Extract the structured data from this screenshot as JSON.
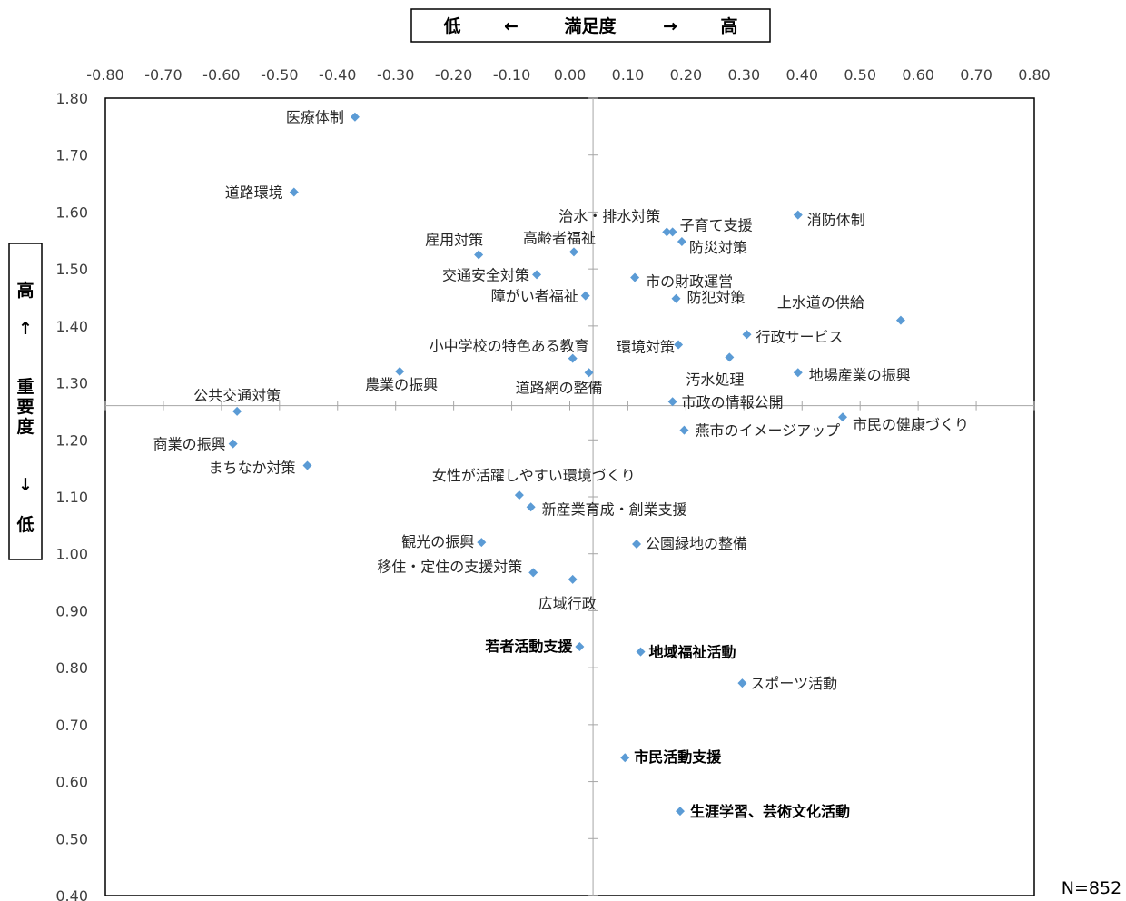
{
  "chart_data": {
    "type": "scatter",
    "x_axis_title": {
      "low": "低",
      "arrow": "←",
      "name": "満足度",
      "arrow2": "→",
      "high": "高"
    },
    "y_axis_title": {
      "high": "高",
      "arrow": "↑",
      "name": "重要度",
      "arrow2": "↓",
      "low": "低"
    },
    "xlim": [
      -0.8,
      0.8
    ],
    "ylim": [
      0.4,
      1.8
    ],
    "x_ticks": [
      "-0.80",
      "-0.70",
      "-0.60",
      "-0.50",
      "-0.40",
      "-0.30",
      "-0.20",
      "-0.10",
      "0.00",
      "0.10",
      "0.20",
      "0.30",
      "0.40",
      "0.50",
      "0.60",
      "0.70",
      "0.80"
    ],
    "y_ticks": [
      "1.80",
      "1.70",
      "1.60",
      "1.50",
      "1.40",
      "1.30",
      "1.20",
      "1.10",
      "1.00",
      "0.90",
      "0.80",
      "0.70",
      "0.60",
      "0.50",
      "0.40"
    ],
    "axis_crossing": {
      "x": 0.04,
      "y": 1.26
    },
    "marker_color": "#5B9BD5",
    "n_label": "N=852",
    "points": [
      {
        "label": "医療体制",
        "x": -0.37,
        "y": 1.767,
        "bold": false
      },
      {
        "label": "道路環境",
        "x": -0.475,
        "y": 1.635,
        "bold": false
      },
      {
        "label": "治水・排水対策",
        "x": 0.167,
        "y": 1.565,
        "bold": false
      },
      {
        "label": "子育て支援",
        "x": 0.177,
        "y": 1.565,
        "bold": false
      },
      {
        "label": "消防体制",
        "x": 0.393,
        "y": 1.595,
        "bold": false
      },
      {
        "label": "雇用対策",
        "x": -0.157,
        "y": 1.525,
        "bold": false
      },
      {
        "label": "高齢者福祉",
        "x": 0.007,
        "y": 1.53,
        "bold": false
      },
      {
        "label": "防災対策",
        "x": 0.193,
        "y": 1.548,
        "bold": false
      },
      {
        "label": "交通安全対策",
        "x": -0.057,
        "y": 1.49,
        "bold": false
      },
      {
        "label": "市の財政運営",
        "x": 0.112,
        "y": 1.485,
        "bold": false
      },
      {
        "label": "障がい者福祉",
        "x": 0.027,
        "y": 1.453,
        "bold": false
      },
      {
        "label": "防犯対策",
        "x": 0.183,
        "y": 1.448,
        "bold": false
      },
      {
        "label": "上水道の供給",
        "x": 0.57,
        "y": 1.41,
        "bold": false
      },
      {
        "label": "行政サービス",
        "x": 0.305,
        "y": 1.385,
        "bold": false
      },
      {
        "label": "小中学校の特色ある教育",
        "x": 0.005,
        "y": 1.343,
        "bold": false
      },
      {
        "label": "環境対策",
        "x": 0.187,
        "y": 1.367,
        "bold": false
      },
      {
        "label": "汚水処理",
        "x": 0.275,
        "y": 1.345,
        "bold": false
      },
      {
        "label": "農業の振興",
        "x": -0.293,
        "y": 1.32,
        "bold": false
      },
      {
        "label": "道路網の整備",
        "x": 0.033,
        "y": 1.318,
        "bold": false
      },
      {
        "label": "地場産業の振興",
        "x": 0.393,
        "y": 1.318,
        "bold": false
      },
      {
        "label": "公共交通対策",
        "x": -0.573,
        "y": 1.25,
        "bold": false
      },
      {
        "label": "市政の情報公開",
        "x": 0.177,
        "y": 1.267,
        "bold": false
      },
      {
        "label": "市民の健康づくり",
        "x": 0.47,
        "y": 1.24,
        "bold": false
      },
      {
        "label": "燕市のイメージアップ",
        "x": 0.197,
        "y": 1.217,
        "bold": false
      },
      {
        "label": "商業の振興",
        "x": -0.58,
        "y": 1.193,
        "bold": false
      },
      {
        "label": "まちなか対策",
        "x": -0.452,
        "y": 1.155,
        "bold": false
      },
      {
        "label": "女性が活躍しやすい環境づくり",
        "x": -0.087,
        "y": 1.103,
        "bold": false
      },
      {
        "label": "新産業育成・創業支援",
        "x": -0.067,
        "y": 1.082,
        "bold": false
      },
      {
        "label": "観光の振興",
        "x": -0.152,
        "y": 1.02,
        "bold": false
      },
      {
        "label": "公園緑地の整備",
        "x": 0.115,
        "y": 1.017,
        "bold": false
      },
      {
        "label": "移住・定住の支援対策",
        "x": -0.063,
        "y": 0.967,
        "bold": false
      },
      {
        "label": "広域行政",
        "x": 0.005,
        "y": 0.955,
        "bold": false
      },
      {
        "label": "若者活動支援",
        "x": 0.017,
        "y": 0.837,
        "bold": true
      },
      {
        "label": "地域福祉活動",
        "x": 0.122,
        "y": 0.828,
        "bold": true
      },
      {
        "label": "スポーツ活動",
        "x": 0.297,
        "y": 0.773,
        "bold": false
      },
      {
        "label": "市民活動支援",
        "x": 0.095,
        "y": 0.642,
        "bold": true
      },
      {
        "label": "生涯学習、芸術文化活動",
        "x": 0.19,
        "y": 0.548,
        "bold": true
      }
    ]
  }
}
